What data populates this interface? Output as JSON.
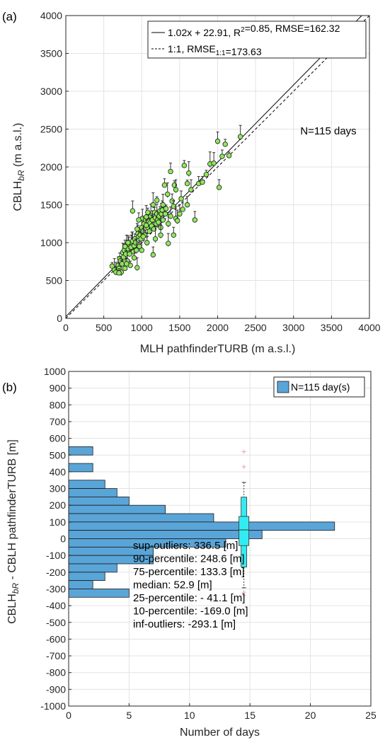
{
  "chart_data": [
    {
      "panel_label": "(a)",
      "type": "scatter",
      "xlabel": "MLH pathfinderTURB (m a.s.l.)",
      "ylabel": {
        "main": "CBLH",
        "sub": "bR",
        "unit": " (m a.s.l.)"
      },
      "xlim": [
        0,
        4000
      ],
      "ylim": [
        0,
        4000
      ],
      "xticks": [
        0,
        500,
        1000,
        1500,
        2000,
        2500,
        3000,
        3500,
        4000
      ],
      "yticks": [
        0,
        500,
        1000,
        1500,
        2000,
        2500,
        3000,
        3500,
        4000
      ],
      "grid": true,
      "colors": {
        "marker_fill": "#8ee85a",
        "marker_edge": "#1a1a1a",
        "grid": "#e3e3e3"
      },
      "fit_line": {
        "slope": 1.02,
        "intercept": 22.91
      },
      "legend": {
        "position": "top-right",
        "entries": [
          {
            "style": "solid",
            "label_parts": [
              {
                "t": "1.02x + 22.91, R"
              },
              {
                "t": "2",
                "sup": true
              },
              {
                "t": "=0.85, RMSE=162.32"
              }
            ]
          },
          {
            "style": "dashed",
            "label_parts": [
              {
                "t": "1:1, RMSE"
              },
              {
                "t": "1:1",
                "sub": true
              },
              {
                "t": "=173.63"
              }
            ]
          }
        ]
      },
      "annotation": "N=115 days",
      "points": [
        [
          610,
          690
        ],
        [
          640,
          640
        ],
        [
          660,
          610
        ],
        [
          690,
          700
        ],
        [
          700,
          660
        ],
        [
          710,
          790
        ],
        [
          720,
          760
        ],
        [
          730,
          610
        ],
        [
          740,
          720
        ],
        [
          750,
          870
        ],
        [
          760,
          810
        ],
        [
          770,
          900
        ],
        [
          780,
          660
        ],
        [
          790,
          850
        ],
        [
          800,
          950
        ],
        [
          810,
          760
        ],
        [
          820,
          920
        ],
        [
          830,
          980
        ],
        [
          840,
          850
        ],
        [
          850,
          700
        ],
        [
          860,
          940
        ],
        [
          870,
          1000
        ],
        [
          880,
          1020
        ],
        [
          890,
          880
        ],
        [
          900,
          960
        ],
        [
          910,
          1050
        ],
        [
          920,
          1000
        ],
        [
          930,
          900
        ],
        [
          940,
          670
        ],
        [
          950,
          1120
        ],
        [
          960,
          1080
        ],
        [
          970,
          950
        ],
        [
          980,
          1100
        ],
        [
          990,
          1050
        ],
        [
          1000,
          1200
        ],
        [
          1010,
          1320
        ],
        [
          1020,
          1150
        ],
        [
          1030,
          1250
        ],
        [
          1040,
          1100
        ],
        [
          1050,
          1300
        ],
        [
          1060,
          1340
        ],
        [
          1070,
          1000
        ],
        [
          1080,
          1200
        ],
        [
          1090,
          1280
        ],
        [
          1100,
          1150
        ],
        [
          1110,
          1260
        ],
        [
          1120,
          1350
        ],
        [
          1130,
          1220
        ],
        [
          1140,
          1300
        ],
        [
          1150,
          840
        ],
        [
          1160,
          1180
        ],
        [
          1170,
          1400
        ],
        [
          1180,
          1330
        ],
        [
          1190,
          1250
        ],
        [
          1200,
          1380
        ],
        [
          1210,
          1300
        ],
        [
          1220,
          1270
        ],
        [
          1230,
          1350
        ],
        [
          1240,
          1420
        ],
        [
          1250,
          1200
        ],
        [
          1260,
          1380
        ],
        [
          1270,
          1430
        ],
        [
          1280,
          1300
        ],
        [
          1300,
          1760
        ],
        [
          1310,
          1380
        ],
        [
          1320,
          1450
        ],
        [
          1340,
          1640
        ],
        [
          1350,
          990
        ],
        [
          1380,
          1940
        ],
        [
          1400,
          1550
        ],
        [
          1420,
          1480
        ],
        [
          1430,
          1760
        ],
        [
          1450,
          1320
        ],
        [
          1470,
          1290
        ],
        [
          1500,
          1380
        ],
        [
          1520,
          1580
        ],
        [
          1540,
          1440
        ],
        [
          1560,
          2020
        ],
        [
          1600,
          1780
        ],
        [
          1620,
          1920
        ],
        [
          1650,
          1700
        ],
        [
          1700,
          1300
        ],
        [
          1750,
          1780
        ],
        [
          1800,
          1800
        ],
        [
          1850,
          1900
        ],
        [
          1900,
          2040
        ],
        [
          1950,
          2050
        ],
        [
          2000,
          2340
        ],
        [
          2020,
          1730
        ],
        [
          2060,
          2140
        ],
        [
          2100,
          2300
        ],
        [
          2150,
          2150
        ],
        [
          2300,
          2400
        ],
        [
          880,
          1420
        ],
        [
          1020,
          1080
        ],
        [
          960,
          1300
        ],
        [
          800,
          720
        ],
        [
          700,
          600
        ],
        [
          1150,
          1500
        ],
        [
          1250,
          1100
        ],
        [
          900,
          800
        ],
        [
          1000,
          900
        ],
        [
          780,
          950
        ],
        [
          1060,
          1230
        ],
        [
          1200,
          1560
        ],
        [
          1350,
          1250
        ],
        [
          1450,
          1700
        ],
        [
          1600,
          1500
        ],
        [
          820,
          1000
        ],
        [
          940,
          1180
        ],
        [
          1080,
          1400
        ],
        [
          1180,
          1050
        ],
        [
          1280,
          1500
        ],
        [
          1380,
          1350
        ],
        [
          1420,
          1100
        ]
      ]
    },
    {
      "panel_label": "(b)",
      "type": "bar",
      "orientation": "horizontal",
      "xlabel": "Number of days",
      "ylabel": {
        "main": "CBLH",
        "sub": "bR",
        "unit": " - CBLH pathfinderTURB [m]"
      },
      "xlim": [
        0,
        25
      ],
      "ylim": [
        -1000,
        1000
      ],
      "xticks": [
        0,
        5,
        10,
        15,
        20,
        25
      ],
      "yticks": [
        1000,
        900,
        800,
        700,
        600,
        500,
        400,
        300,
        200,
        100,
        0,
        -100,
        -200,
        -300,
        -400,
        -500,
        -600,
        -700,
        -800,
        -900,
        -1000
      ],
      "grid": true,
      "colors": {
        "bar": "#5aa5d8",
        "bar_edge": "#1a1a1a",
        "box": "#33ecf2",
        "outlier": "#f2a0a8",
        "grid": "#e3e3e3"
      },
      "legend": {
        "position": "top-right",
        "entries": [
          {
            "label": "N=115 day(s)"
          }
        ]
      },
      "bins": [
        {
          "y0": 500,
          "y1": 550,
          "count": 2
        },
        {
          "y0": 400,
          "y1": 450,
          "count": 2
        },
        {
          "y0": 300,
          "y1": 350,
          "count": 3
        },
        {
          "y0": 250,
          "y1": 300,
          "count": 4
        },
        {
          "y0": 200,
          "y1": 250,
          "count": 5
        },
        {
          "y0": 150,
          "y1": 200,
          "count": 8
        },
        {
          "y0": 100,
          "y1": 150,
          "count": 12
        },
        {
          "y0": 50,
          "y1": 100,
          "count": 22
        },
        {
          "y0": 0,
          "y1": 50,
          "count": 16
        },
        {
          "y0": -50,
          "y1": 0,
          "count": 13
        },
        {
          "y0": -100,
          "y1": -50,
          "count": 7
        },
        {
          "y0": -150,
          "y1": -100,
          "count": 7
        },
        {
          "y0": -200,
          "y1": -150,
          "count": 4
        },
        {
          "y0": -250,
          "y1": -200,
          "count": 3
        },
        {
          "y0": -300,
          "y1": -250,
          "count": 2
        },
        {
          "y0": -350,
          "y1": -300,
          "count": 5
        }
      ],
      "boxplot": {
        "x": 14.5,
        "sup_outliers": 336.5,
        "p90": 248.6,
        "p75": 133.3,
        "median": 52.9,
        "p25": -41.1,
        "p10": -169.0,
        "inf_outliers": -293.1,
        "outliers": [
          520,
          430,
          -320,
          -340
        ]
      },
      "stats_text": [
        "sup-outliers: 336.5 [m]",
        "90-percentile: 248.6 [m]",
        "75-percentile: 133.3 [m]",
        "median: 52.9 [m]",
        "25-percentile: - 41.1 [m]",
        " 10-percentile: -169.0 [m]",
        "inf-outliers: -293.1 [m]"
      ]
    }
  ]
}
